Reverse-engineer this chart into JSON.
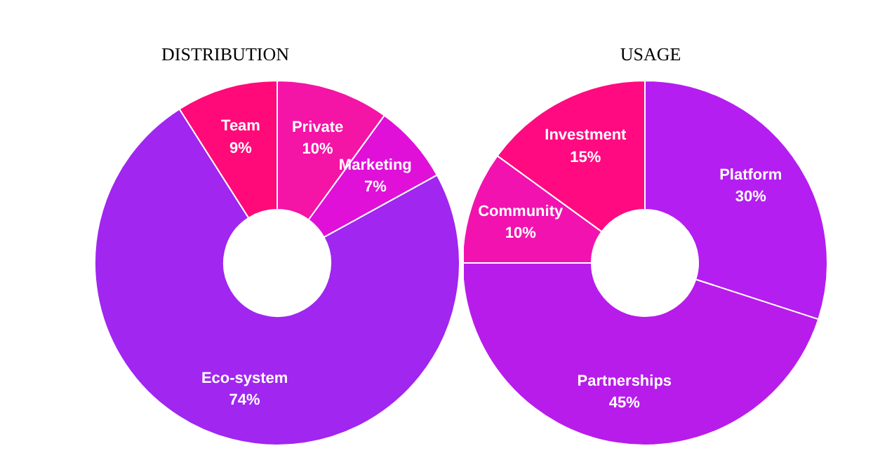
{
  "chart_data": [
    {
      "type": "donut",
      "title": "DISTRIBUTION",
      "categories": [
        "Private",
        "Marketing",
        "Eco-system",
        "Team"
      ],
      "values": [
        10,
        7,
        74,
        9
      ],
      "value_labels": [
        "10%",
        "7%",
        "74%",
        "9%"
      ],
      "colors": [
        "#f414a6",
        "#e010d8",
        "#a026f0",
        "#ff0a78"
      ]
    },
    {
      "type": "donut",
      "title": "USAGE",
      "categories": [
        "Platform",
        "Partnerships",
        "Community",
        "Investment"
      ],
      "values": [
        30,
        45,
        10,
        15
      ],
      "value_labels": [
        "30%",
        "45%",
        "10%",
        "15%"
      ],
      "colors": [
        "#b41ef0",
        "#b81cea",
        "#f212b0",
        "#ff0a80"
      ]
    }
  ]
}
